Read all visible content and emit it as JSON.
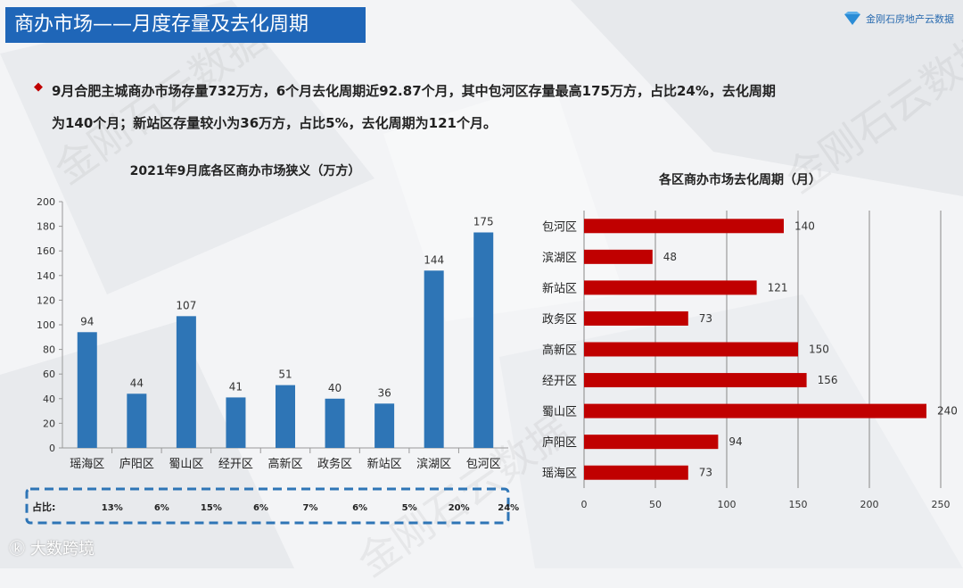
{
  "header": {
    "title": "商办市场——月度存量及去化周期",
    "logo_text": "金刚石房地产云数据"
  },
  "summary": {
    "line1": "9月合肥主城商办市场存量732万方，6个月去化周期近92.87个月，其中包河区存量最高175万方，占比24%，去化周期",
    "line2": "为140个月；新站区存量较小为36万方，占比5%，去化周期为121个月。"
  },
  "watermark": "金刚石云数据",
  "footer": {
    "brand": "大数跨境"
  },
  "colors": {
    "bar_blue": "#2e75b6",
    "bar_red": "#c00000",
    "title_bg": "#1f66b8",
    "dash_box": "#2e75b6"
  },
  "chart_data": [
    {
      "type": "bar",
      "title": "2021年9月底各区商办市场狭义（万方）",
      "categories": [
        "瑶海区",
        "庐阳区",
        "蜀山区",
        "经开区",
        "高新区",
        "政务区",
        "新站区",
        "滨湖区",
        "包河区"
      ],
      "values": [
        94,
        44,
        107,
        41,
        51,
        40,
        36,
        144,
        175
      ],
      "ylim": [
        0,
        200
      ],
      "yticks": [
        "0",
        "20",
        "40",
        "60",
        "80",
        "100",
        "120",
        "140",
        "160",
        "180",
        "200"
      ],
      "share_label": "占比:",
      "shares": [
        "13%",
        "6%",
        "15%",
        "6%",
        "7%",
        "6%",
        "5%",
        "20%",
        "24%"
      ]
    },
    {
      "type": "bar",
      "orientation": "horizontal",
      "title": "各区商办市场去化周期（月）",
      "categories": [
        "包河区",
        "滨湖区",
        "新站区",
        "政务区",
        "高新区",
        "经开区",
        "蜀山区",
        "庐阳区",
        "瑶海区"
      ],
      "values": [
        140,
        48,
        121,
        73,
        150,
        156,
        240,
        94,
        73
      ],
      "xlim": [
        0,
        250
      ],
      "xticks": [
        "0",
        "50",
        "100",
        "150",
        "200",
        "250"
      ]
    }
  ]
}
